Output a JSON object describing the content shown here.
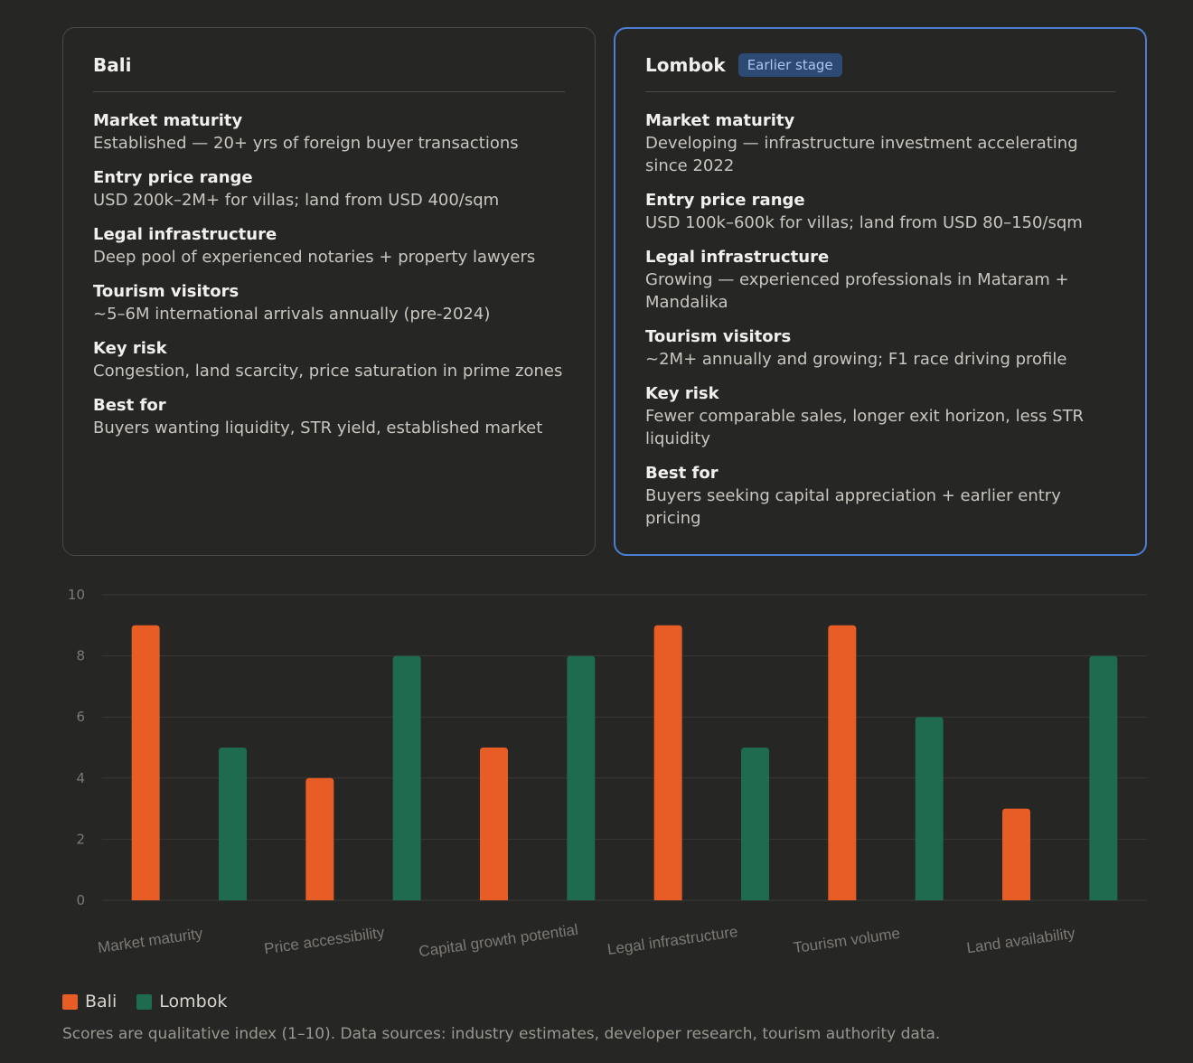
{
  "cards": [
    {
      "title": "Bali",
      "badge": "",
      "rows": [
        {
          "label": "Market maturity",
          "value": "Established — 20+ yrs of foreign buyer transactions"
        },
        {
          "label": "Entry price range",
          "value": "USD 200k–2M+ for villas; land from USD 400/sqm"
        },
        {
          "label": "Legal infrastructure",
          "value": "Deep pool of experienced notaries + property lawyers"
        },
        {
          "label": "Tourism visitors",
          "value": "~5–6M international arrivals annually (pre-2024)"
        },
        {
          "label": "Key risk",
          "value": "Congestion, land scarcity, price saturation in prime zones"
        },
        {
          "label": "Best for",
          "value": "Buyers wanting liquidity, STR yield, established market"
        }
      ]
    },
    {
      "title": "Lombok",
      "badge": "Earlier stage",
      "rows": [
        {
          "label": "Market maturity",
          "value": "Developing — infrastructure investment accelerating since 2022"
        },
        {
          "label": "Entry price range",
          "value": "USD 100k–600k for villas; land from USD 80–150/sqm"
        },
        {
          "label": "Legal infrastructure",
          "value": "Growing — experienced professionals in Mataram + Mandalika"
        },
        {
          "label": "Tourism visitors",
          "value": "~2M+ annually and growing; F1 race driving profile"
        },
        {
          "label": "Key risk",
          "value": "Fewer comparable sales, longer exit horizon, less STR liquidity"
        },
        {
          "label": "Best for",
          "value": "Buyers seeking capital appreciation + earlier entry pricing"
        }
      ]
    }
  ],
  "chart_data": {
    "type": "bar",
    "categories": [
      "Market maturity",
      "Price accessibility",
      "Capital growth potential",
      "Legal infrastructure",
      "Tourism volume",
      "Land availability"
    ],
    "series": [
      {
        "name": "Bali",
        "values": [
          9,
          4,
          5,
          9,
          9,
          3
        ],
        "color": "#e85d26"
      },
      {
        "name": "Lombok",
        "values": [
          5,
          8,
          8,
          5,
          6,
          8
        ],
        "color": "#1e6b4f"
      }
    ],
    "ylim": [
      0,
      10
    ],
    "yticks": [
      "0",
      "2",
      "4",
      "6",
      "8",
      "10"
    ],
    "grid": true,
    "legend": "bottom-left"
  },
  "legend": {
    "bali": "Bali",
    "lombok": "Lombok"
  },
  "colors": {
    "bali": "#e85d26",
    "lombok": "#1e6b4f",
    "accent_border": "#4a7fd4"
  },
  "footnote": "Scores are qualitative index (1–10). Data sources: industry estimates, developer research, tourism authority data."
}
